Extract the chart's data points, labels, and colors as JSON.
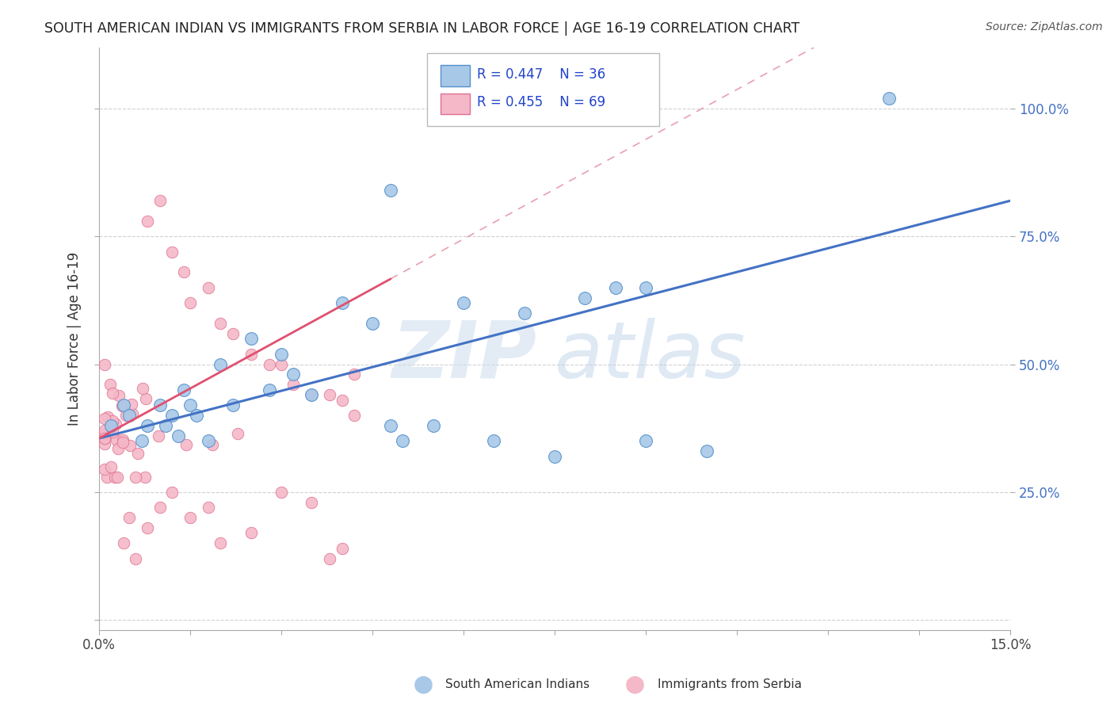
{
  "title": "SOUTH AMERICAN INDIAN VS IMMIGRANTS FROM SERBIA IN LABOR FORCE | AGE 16-19 CORRELATION CHART",
  "source": "Source: ZipAtlas.com",
  "ylabel": "In Labor Force | Age 16-19",
  "xlim": [
    0.0,
    0.15
  ],
  "ylim": [
    -0.02,
    1.12
  ],
  "blue_color": "#a8c8e8",
  "blue_edge": "#5590cc",
  "pink_color": "#f4b8c8",
  "pink_edge": "#e07090",
  "trend_blue": "#4472c4",
  "trend_pink": "#e05070",
  "trend_pink_dash": "#e8a0b0",
  "R_blue": 0.447,
  "N_blue": 36,
  "R_pink": 0.455,
  "N_pink": 69,
  "watermark_zip_color": "#ccdded",
  "watermark_atlas_color": "#b8d0e8",
  "background_color": "#ffffff",
  "grid_color": "#cccccc",
  "right_tick_color": "#4472c4",
  "legend_text_color": "#2244cc"
}
